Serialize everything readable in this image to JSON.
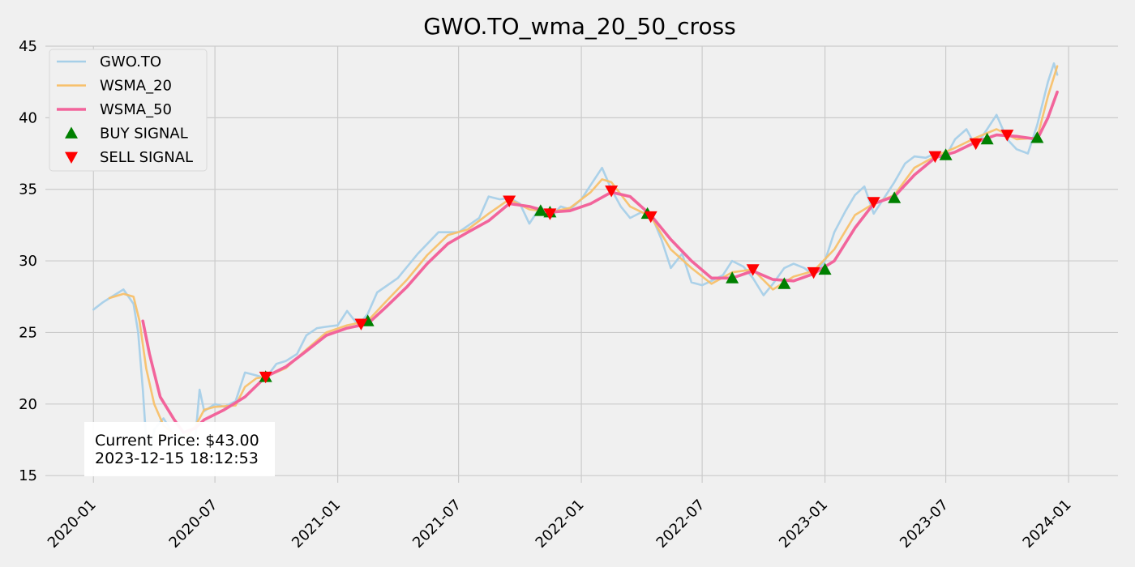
{
  "chart_data": {
    "type": "line",
    "title": "GWO.TO_wma_20_50_cross",
    "xlabel": "",
    "ylabel": "",
    "x_range": [
      "2019-10-21",
      "2024-03-15"
    ],
    "ylim": [
      14.5,
      45.0
    ],
    "grid": true,
    "legend_position": "top-left",
    "x_ticks": [
      "2020-01",
      "2020-07",
      "2021-01",
      "2021-07",
      "2022-01",
      "2022-07",
      "2023-01",
      "2023-07",
      "2024-01"
    ],
    "y_ticks": [
      15,
      20,
      25,
      30,
      35,
      40,
      45
    ],
    "colors": {
      "price": "#a6cfe8",
      "wsma20": "#f7c06a",
      "wsma50": "#f2649b",
      "buy": "#008000",
      "sell": "#ff0000",
      "grid": "#cbcbcb",
      "background": "#f0f0f0"
    },
    "series": [
      {
        "name": "GWO.TO",
        "points": [
          [
            "2020-01-01",
            26.6
          ],
          [
            "2020-01-15",
            27.1
          ],
          [
            "2020-02-01",
            27.6
          ],
          [
            "2020-02-15",
            28.0
          ],
          [
            "2020-03-01",
            27.0
          ],
          [
            "2020-03-08",
            25.0
          ],
          [
            "2020-03-15",
            21.0
          ],
          [
            "2020-03-20",
            17.5
          ],
          [
            "2020-03-23",
            15.8
          ],
          [
            "2020-04-01",
            18.2
          ],
          [
            "2020-04-15",
            19.0
          ],
          [
            "2020-05-01",
            17.8
          ],
          [
            "2020-05-15",
            16.8
          ],
          [
            "2020-06-01",
            17.3
          ],
          [
            "2020-06-08",
            21.0
          ],
          [
            "2020-06-15",
            19.5
          ],
          [
            "2020-07-01",
            20.0
          ],
          [
            "2020-07-15",
            19.8
          ],
          [
            "2020-08-01",
            20.2
          ],
          [
            "2020-08-15",
            22.2
          ],
          [
            "2020-09-01",
            22.0
          ],
          [
            "2020-09-15",
            21.8
          ],
          [
            "2020-10-01",
            22.8
          ],
          [
            "2020-10-15",
            23.0
          ],
          [
            "2020-11-01",
            23.5
          ],
          [
            "2020-11-15",
            24.8
          ],
          [
            "2020-12-01",
            25.3
          ],
          [
            "2020-12-15",
            25.4
          ],
          [
            "2021-01-01",
            25.5
          ],
          [
            "2021-01-15",
            26.5
          ],
          [
            "2021-02-01",
            25.5
          ],
          [
            "2021-02-15",
            26.3
          ],
          [
            "2021-03-01",
            27.8
          ],
          [
            "2021-04-01",
            28.8
          ],
          [
            "2021-05-01",
            30.5
          ],
          [
            "2021-06-01",
            32.0
          ],
          [
            "2021-07-01",
            32.0
          ],
          [
            "2021-08-01",
            33.0
          ],
          [
            "2021-08-15",
            34.5
          ],
          [
            "2021-09-01",
            34.3
          ],
          [
            "2021-09-15",
            34.4
          ],
          [
            "2021-10-01",
            34.0
          ],
          [
            "2021-10-15",
            32.6
          ],
          [
            "2021-11-01",
            33.8
          ],
          [
            "2021-11-15",
            33.0
          ],
          [
            "2021-12-01",
            33.8
          ],
          [
            "2021-12-15",
            33.6
          ],
          [
            "2022-01-01",
            34.3
          ],
          [
            "2022-01-15",
            35.3
          ],
          [
            "2022-02-01",
            36.5
          ],
          [
            "2022-02-15",
            35.0
          ],
          [
            "2022-03-01",
            33.8
          ],
          [
            "2022-03-15",
            33.0
          ],
          [
            "2022-04-01",
            33.4
          ],
          [
            "2022-04-15",
            33.3
          ],
          [
            "2022-05-01",
            31.5
          ],
          [
            "2022-05-15",
            29.5
          ],
          [
            "2022-06-01",
            30.5
          ],
          [
            "2022-06-15",
            28.5
          ],
          [
            "2022-07-01",
            28.3
          ],
          [
            "2022-07-15",
            28.6
          ],
          [
            "2022-08-01",
            29.0
          ],
          [
            "2022-08-15",
            30.0
          ],
          [
            "2022-09-01",
            29.6
          ],
          [
            "2022-09-15",
            28.8
          ],
          [
            "2022-10-01",
            27.6
          ],
          [
            "2022-10-15",
            28.4
          ],
          [
            "2022-11-01",
            29.5
          ],
          [
            "2022-11-15",
            29.8
          ],
          [
            "2022-12-01",
            29.5
          ],
          [
            "2022-12-15",
            29.0
          ],
          [
            "2023-01-01",
            30.0
          ],
          [
            "2023-01-15",
            32.0
          ],
          [
            "2023-02-01",
            33.5
          ],
          [
            "2023-02-15",
            34.6
          ],
          [
            "2023-03-01",
            35.2
          ],
          [
            "2023-03-15",
            33.3
          ],
          [
            "2023-04-01",
            34.5
          ],
          [
            "2023-04-15",
            35.5
          ],
          [
            "2023-05-01",
            36.8
          ],
          [
            "2023-05-15",
            37.3
          ],
          [
            "2023-06-01",
            37.2
          ],
          [
            "2023-06-15",
            37.5
          ],
          [
            "2023-07-01",
            37.3
          ],
          [
            "2023-07-15",
            38.5
          ],
          [
            "2023-08-01",
            39.2
          ],
          [
            "2023-08-15",
            38.0
          ],
          [
            "2023-09-01",
            39.2
          ],
          [
            "2023-09-15",
            40.2
          ],
          [
            "2023-10-01",
            38.5
          ],
          [
            "2023-10-15",
            37.8
          ],
          [
            "2023-11-01",
            37.5
          ],
          [
            "2023-11-15",
            39.5
          ],
          [
            "2023-12-01",
            42.5
          ],
          [
            "2023-12-10",
            43.8
          ],
          [
            "2023-12-15",
            43.0
          ]
        ]
      },
      {
        "name": "WSMA_20",
        "points": [
          [
            "2020-01-25",
            27.4
          ],
          [
            "2020-02-15",
            27.7
          ],
          [
            "2020-03-01",
            27.5
          ],
          [
            "2020-03-10",
            25.8
          ],
          [
            "2020-03-20",
            22.5
          ],
          [
            "2020-04-01",
            20.0
          ],
          [
            "2020-04-15",
            18.5
          ],
          [
            "2020-05-01",
            17.9
          ],
          [
            "2020-05-15",
            17.6
          ],
          [
            "2020-06-01",
            18.4
          ],
          [
            "2020-06-15",
            19.6
          ],
          [
            "2020-07-01",
            19.8
          ],
          [
            "2020-08-01",
            19.9
          ],
          [
            "2020-08-15",
            21.2
          ],
          [
            "2020-09-01",
            21.8
          ],
          [
            "2020-09-15",
            21.9
          ],
          [
            "2020-10-15",
            22.5
          ],
          [
            "2020-11-15",
            23.8
          ],
          [
            "2020-12-15",
            25.0
          ],
          [
            "2021-01-15",
            25.5
          ],
          [
            "2021-02-15",
            25.8
          ],
          [
            "2021-03-15",
            27.2
          ],
          [
            "2021-04-15",
            28.7
          ],
          [
            "2021-05-15",
            30.4
          ],
          [
            "2021-06-15",
            31.8
          ],
          [
            "2021-07-15",
            32.2
          ],
          [
            "2021-08-15",
            33.3
          ],
          [
            "2021-09-15",
            34.3
          ],
          [
            "2021-10-15",
            33.6
          ],
          [
            "2021-11-15",
            33.4
          ],
          [
            "2021-12-15",
            33.7
          ],
          [
            "2022-01-15",
            34.8
          ],
          [
            "2022-02-01",
            35.7
          ],
          [
            "2022-02-15",
            35.5
          ],
          [
            "2022-03-15",
            33.8
          ],
          [
            "2022-04-15",
            33.1
          ],
          [
            "2022-05-15",
            30.8
          ],
          [
            "2022-06-15",
            29.5
          ],
          [
            "2022-07-15",
            28.4
          ],
          [
            "2022-08-15",
            29.2
          ],
          [
            "2022-09-15",
            29.4
          ],
          [
            "2022-10-15",
            28.0
          ],
          [
            "2022-11-15",
            28.9
          ],
          [
            "2022-12-15",
            29.3
          ],
          [
            "2023-01-15",
            30.8
          ],
          [
            "2023-02-15",
            33.2
          ],
          [
            "2023-03-15",
            34.0
          ],
          [
            "2023-04-15",
            34.6
          ],
          [
            "2023-05-15",
            36.5
          ],
          [
            "2023-06-15",
            37.3
          ],
          [
            "2023-07-15",
            37.9
          ],
          [
            "2023-08-15",
            38.6
          ],
          [
            "2023-09-15",
            39.2
          ],
          [
            "2023-10-15",
            38.5
          ],
          [
            "2023-11-15",
            38.6
          ],
          [
            "2023-12-01",
            41.5
          ],
          [
            "2023-12-15",
            43.6
          ]
        ]
      },
      {
        "name": "WSMA_50",
        "points": [
          [
            "2020-03-15",
            25.8
          ],
          [
            "2020-03-25",
            23.5
          ],
          [
            "2020-04-10",
            20.5
          ],
          [
            "2020-05-01",
            18.9
          ],
          [
            "2020-05-15",
            18.0
          ],
          [
            "2020-06-01",
            18.3
          ],
          [
            "2020-06-15",
            18.9
          ],
          [
            "2020-07-15",
            19.6
          ],
          [
            "2020-08-15",
            20.5
          ],
          [
            "2020-09-15",
            21.9
          ],
          [
            "2020-10-15",
            22.6
          ],
          [
            "2020-11-15",
            23.7
          ],
          [
            "2020-12-15",
            24.8
          ],
          [
            "2021-01-15",
            25.3
          ],
          [
            "2021-02-15",
            25.6
          ],
          [
            "2021-03-15",
            26.8
          ],
          [
            "2021-04-15",
            28.2
          ],
          [
            "2021-05-15",
            29.8
          ],
          [
            "2021-06-15",
            31.2
          ],
          [
            "2021-07-15",
            32.0
          ],
          [
            "2021-08-15",
            32.8
          ],
          [
            "2021-09-15",
            34.0
          ],
          [
            "2021-10-15",
            33.8
          ],
          [
            "2021-11-15",
            33.4
          ],
          [
            "2021-12-15",
            33.5
          ],
          [
            "2022-01-15",
            34.0
          ],
          [
            "2022-02-15",
            34.8
          ],
          [
            "2022-03-15",
            34.5
          ],
          [
            "2022-04-15",
            33.2
          ],
          [
            "2022-05-15",
            31.5
          ],
          [
            "2022-06-15",
            30.0
          ],
          [
            "2022-07-15",
            28.8
          ],
          [
            "2022-08-15",
            28.8
          ],
          [
            "2022-09-15",
            29.3
          ],
          [
            "2022-10-15",
            28.7
          ],
          [
            "2022-11-15",
            28.6
          ],
          [
            "2022-12-15",
            29.1
          ],
          [
            "2023-01-15",
            30.0
          ],
          [
            "2023-02-15",
            32.3
          ],
          [
            "2023-03-15",
            34.0
          ],
          [
            "2023-04-15",
            34.5
          ],
          [
            "2023-05-15",
            36.0
          ],
          [
            "2023-06-15",
            37.2
          ],
          [
            "2023-07-15",
            37.6
          ],
          [
            "2023-08-15",
            38.3
          ],
          [
            "2023-09-15",
            38.8
          ],
          [
            "2023-10-15",
            38.7
          ],
          [
            "2023-11-15",
            38.5
          ],
          [
            "2023-12-01",
            40.0
          ],
          [
            "2023-12-15",
            41.8
          ]
        ]
      }
    ],
    "buy_signals": [
      [
        "2020-09-15",
        21.9
      ],
      [
        "2021-02-15",
        25.8
      ],
      [
        "2021-11-01",
        33.5
      ],
      [
        "2021-11-15",
        33.4
      ],
      [
        "2022-04-10",
        33.3
      ],
      [
        "2022-08-15",
        28.8
      ],
      [
        "2022-11-01",
        28.4
      ],
      [
        "2023-01-01",
        29.4
      ],
      [
        "2023-04-15",
        34.4
      ],
      [
        "2023-07-01",
        37.4
      ],
      [
        "2023-09-01",
        38.5
      ],
      [
        "2023-11-15",
        38.6
      ]
    ],
    "sell_signals": [
      [
        "2020-09-15",
        21.9
      ],
      [
        "2021-02-05",
        25.6
      ],
      [
        "2021-09-15",
        34.2
      ],
      [
        "2021-11-15",
        33.3
      ],
      [
        "2022-02-15",
        34.9
      ],
      [
        "2022-04-15",
        33.1
      ],
      [
        "2022-09-15",
        29.4
      ],
      [
        "2022-12-15",
        29.2
      ],
      [
        "2023-03-15",
        34.1
      ],
      [
        "2023-06-15",
        37.3
      ],
      [
        "2023-08-15",
        38.2
      ],
      [
        "2023-10-01",
        38.8
      ]
    ],
    "annotation": {
      "line1": "Current Price: $43.00",
      "line2": "2023-12-15 18:12:53"
    },
    "legend": [
      {
        "label": "GWO.TO",
        "kind": "line",
        "color_key": "price"
      },
      {
        "label": "WSMA_20",
        "kind": "line",
        "color_key": "wsma20"
      },
      {
        "label": "WSMA_50",
        "kind": "line",
        "color_key": "wsma50"
      },
      {
        "label": "BUY SIGNAL",
        "kind": "buy",
        "color_key": "buy"
      },
      {
        "label": "SELL SIGNAL",
        "kind": "sell",
        "color_key": "sell"
      }
    ]
  }
}
